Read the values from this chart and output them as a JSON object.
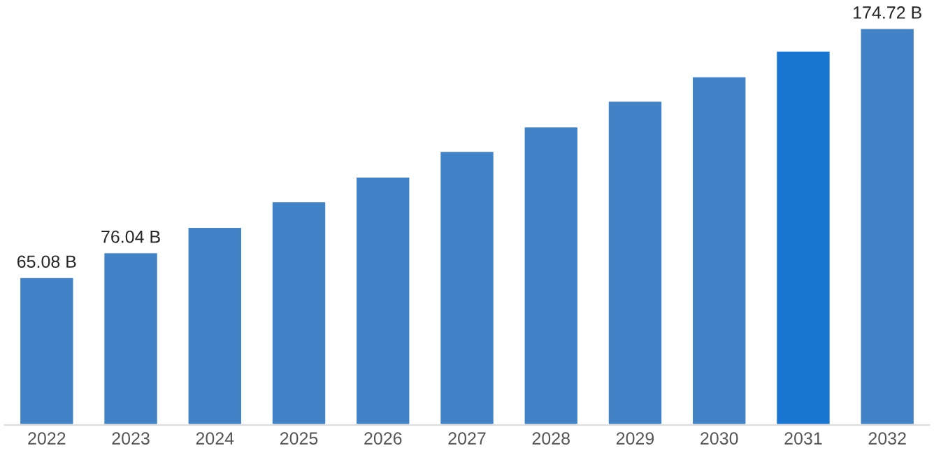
{
  "chart_data": {
    "type": "bar",
    "categories": [
      "2022",
      "2023",
      "2024",
      "2025",
      "2026",
      "2027",
      "2028",
      "2029",
      "2030",
      "2031",
      "2032"
    ],
    "values": [
      65.08,
      76.04,
      87.2,
      98.5,
      109.3,
      120.6,
      131.4,
      142.7,
      153.5,
      164.8,
      174.72
    ],
    "colors": [
      "#4282c6",
      "#4282c6",
      "#4282c6",
      "#4282c6",
      "#4282c6",
      "#4282c6",
      "#4282c6",
      "#4282c6",
      "#4282c6",
      "#1976d2",
      "#4282c6"
    ],
    "value_labels": [
      "65.08 B",
      "76.04 B",
      null,
      null,
      null,
      null,
      null,
      null,
      null,
      null,
      "174.72 B"
    ],
    "grid": false,
    "legend": false
  }
}
